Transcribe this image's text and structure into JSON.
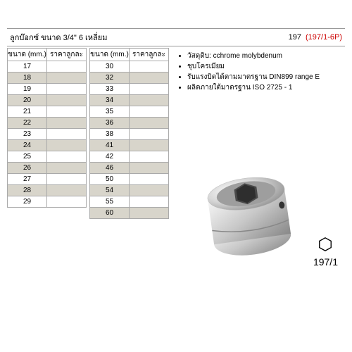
{
  "title": {
    "text": "ลูกบ๊อกซ์ ขนาด 3/4\" 6 เหลี่ยม",
    "code_black": "197",
    "code_red": "(197/1-6P)"
  },
  "table_headers": {
    "size": "ขนาด (mm.)",
    "price": "ราคาลูกละ"
  },
  "table1": [
    {
      "size": "17"
    },
    {
      "size": "18"
    },
    {
      "size": "19"
    },
    {
      "size": "20"
    },
    {
      "size": "21"
    },
    {
      "size": "22"
    },
    {
      "size": "23"
    },
    {
      "size": "24"
    },
    {
      "size": "25"
    },
    {
      "size": "26"
    },
    {
      "size": "27"
    },
    {
      "size": "28"
    },
    {
      "size": "29"
    }
  ],
  "table2": [
    {
      "size": "30"
    },
    {
      "size": "32"
    },
    {
      "size": "33"
    },
    {
      "size": "34"
    },
    {
      "size": "35"
    },
    {
      "size": "36"
    },
    {
      "size": "38"
    },
    {
      "size": "41"
    },
    {
      "size": "42"
    },
    {
      "size": "46"
    },
    {
      "size": "50"
    },
    {
      "size": "54"
    },
    {
      "size": "55"
    },
    {
      "size": "60"
    }
  ],
  "bullets": [
    "วัสดุดิบ: cchrome molybdenum",
    "ชุบโครเมียม",
    "รับแรงบิดได้ตามมาตรฐาน DIN899 range E",
    "ผลิตภายใต้มาตรฐาน ISO 2725 - 1"
  ],
  "model_label": "197/1",
  "colors": {
    "alt_row": "#d8d5cb",
    "border": "#aaaaaa",
    "red": "#cc0000",
    "socket_light": "#f5f5f5",
    "socket_mid": "#cfcfcf",
    "socket_dark": "#8a8a8a"
  }
}
